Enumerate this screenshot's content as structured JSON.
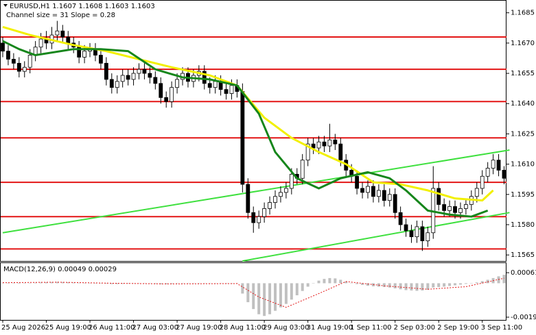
{
  "chart_data": {
    "type": "candlestick",
    "title": "EURUSD,H1  1.1607 1.1608 1.1603 1.1603",
    "subtitle": "Channel size = 31 Slope = 0.28",
    "categories": [
      "25 Aug 2026",
      null,
      null,
      null,
      null,
      null,
      null,
      null,
      "25 Aug 19:00",
      null,
      null,
      null,
      null,
      null,
      null,
      null,
      "26 Aug 11:00",
      null,
      null,
      null,
      null,
      null,
      null,
      null,
      "27 Aug 03:00",
      null,
      null,
      null,
      null,
      null,
      null,
      null,
      "27 Aug 19:00",
      null,
      null,
      null,
      null,
      null,
      null,
      null,
      "28 Aug 11:00",
      null,
      null,
      null,
      null,
      null,
      null,
      null,
      "29 Aug 03:00",
      null,
      null,
      null,
      null,
      null,
      null,
      null,
      "31 Aug 19:00",
      null,
      null,
      null,
      null,
      null,
      null,
      null,
      "1 Sep 11:00",
      null,
      null,
      null,
      null,
      null,
      null,
      null,
      "2 Sep 03:00",
      null,
      null,
      null,
      null,
      null,
      null,
      null,
      "2 Sep 19:00",
      null,
      null,
      null,
      null,
      null,
      null,
      null,
      "3 Sep 11:00",
      null,
      null,
      null,
      null
    ],
    "open": [
      1.167,
      1.1666,
      1.1662,
      1.166,
      1.1656,
      1.1658,
      1.1664,
      1.1668,
      1.1672,
      1.167,
      1.1674,
      1.1676,
      1.1673,
      1.167,
      1.1668,
      1.1663,
      1.1666,
      1.1667,
      1.1664,
      1.166,
      1.1652,
      1.1648,
      1.1651,
      1.1654,
      1.1652,
      1.1655,
      1.1657,
      1.1655,
      1.1653,
      1.165,
      1.1643,
      1.1641,
      1.1648,
      1.1652,
      1.1655,
      1.1651,
      1.1654,
      1.1656,
      1.165,
      1.1648,
      1.1651,
      1.1647,
      1.1645,
      1.1649,
      1.1646,
      1.16,
      1.1586,
      1.1581,
      1.1584,
      1.1588,
      1.1591,
      1.1594,
      1.1596,
      1.1598,
      1.1605,
      1.1603,
      1.1612,
      1.162,
      1.1618,
      1.1621,
      1.1619,
      1.1622,
      1.162,
      1.1612,
      1.1607,
      1.1604,
      1.1598,
      1.1596,
      1.1599,
      1.1594,
      1.1597,
      1.1592,
      1.1595,
      1.1586,
      1.158,
      1.1577,
      1.1574,
      1.1579,
      1.1572,
      1.1576,
      1.1598,
      1.159,
      1.1587,
      1.1589,
      1.1586,
      1.1588,
      1.159,
      1.1594,
      1.1598,
      1.1604,
      1.1608,
      1.1612,
      1.1607
    ],
    "high": [
      1.1673,
      1.1669,
      1.1665,
      1.1663,
      1.1661,
      1.1667,
      1.1671,
      1.1675,
      1.1676,
      1.1678,
      1.1681,
      1.1679,
      1.1676,
      1.1673,
      1.1671,
      1.1669,
      1.167,
      1.167,
      1.1667,
      1.1663,
      1.1655,
      1.1654,
      1.1657,
      1.1657,
      1.1658,
      1.166,
      1.166,
      1.1658,
      1.1656,
      1.1653,
      1.1646,
      1.1651,
      1.1655,
      1.1658,
      1.1658,
      1.1657,
      1.1659,
      1.1659,
      1.1653,
      1.1654,
      1.1654,
      1.165,
      1.1652,
      1.1652,
      1.165,
      1.1603,
      1.1589,
      1.1587,
      1.1591,
      1.1594,
      1.1597,
      1.1599,
      1.1601,
      1.1608,
      1.1608,
      1.1615,
      1.1623,
      1.1623,
      1.1624,
      1.1624,
      1.163,
      1.1625,
      1.1623,
      1.1615,
      1.161,
      1.1607,
      1.1601,
      1.1602,
      1.1602,
      1.16,
      1.16,
      1.1598,
      1.1598,
      1.1589,
      1.1583,
      1.158,
      1.1582,
      1.1582,
      1.1579,
      1.1609,
      1.1601,
      1.1593,
      1.1592,
      1.1592,
      1.1591,
      1.1593,
      1.1597,
      1.1601,
      1.1607,
      1.1611,
      1.1615,
      1.1615,
      1.1609
    ],
    "low": [
      1.1663,
      1.1659,
      1.1657,
      1.1653,
      1.1653,
      1.1655,
      1.1661,
      1.1665,
      1.1667,
      1.1667,
      1.1671,
      1.167,
      1.1667,
      1.1665,
      1.166,
      1.166,
      1.1663,
      1.1661,
      1.1657,
      1.1649,
      1.1645,
      1.1645,
      1.1648,
      1.1649,
      1.1649,
      1.1652,
      1.1652,
      1.165,
      1.1647,
      1.164,
      1.1638,
      1.1638,
      1.1645,
      1.1649,
      1.1648,
      1.1648,
      1.1651,
      1.1647,
      1.1645,
      1.1645,
      1.1644,
      1.1642,
      1.1642,
      1.1643,
      1.1596,
      1.1583,
      1.1576,
      1.1578,
      1.1581,
      1.1585,
      1.1588,
      1.1591,
      1.1593,
      1.1595,
      1.16,
      1.16,
      1.1609,
      1.1615,
      1.1615,
      1.1616,
      1.1616,
      1.1617,
      1.1609,
      1.1604,
      1.1601,
      1.1595,
      1.1593,
      1.1593,
      1.1591,
      1.1591,
      1.1589,
      1.1589,
      1.1583,
      1.1577,
      1.1574,
      1.1571,
      1.1571,
      1.1567,
      1.1569,
      1.1573,
      1.1587,
      1.1584,
      1.1584,
      1.1583,
      1.1583,
      1.1585,
      1.1587,
      1.1591,
      1.1595,
      1.1601,
      1.1605,
      1.1604,
      1.16
    ],
    "close": [
      1.1666,
      1.1662,
      1.166,
      1.1656,
      1.1658,
      1.1664,
      1.1668,
      1.1672,
      1.167,
      1.1674,
      1.1676,
      1.1673,
      1.167,
      1.1668,
      1.1663,
      1.1666,
      1.1667,
      1.1664,
      1.166,
      1.1652,
      1.1648,
      1.1651,
      1.1654,
      1.1652,
      1.1655,
      1.1657,
      1.1655,
      1.1653,
      1.165,
      1.1643,
      1.1641,
      1.1648,
      1.1652,
      1.1655,
      1.1651,
      1.1654,
      1.1656,
      1.165,
      1.1648,
      1.1651,
      1.1647,
      1.1645,
      1.1649,
      1.1646,
      1.16,
      1.1586,
      1.1581,
      1.1584,
      1.1588,
      1.1591,
      1.1594,
      1.1596,
      1.1598,
      1.1605,
      1.1603,
      1.1612,
      1.162,
      1.1618,
      1.1621,
      1.1619,
      1.1622,
      1.162,
      1.1612,
      1.1607,
      1.1604,
      1.1598,
      1.1596,
      1.1599,
      1.1594,
      1.1597,
      1.1592,
      1.1595,
      1.1586,
      1.158,
      1.1577,
      1.1574,
      1.1579,
      1.1572,
      1.1576,
      1.1598,
      1.159,
      1.1587,
      1.1589,
      1.1586,
      1.1588,
      1.159,
      1.1594,
      1.1598,
      1.1604,
      1.1608,
      1.1612,
      1.1607,
      1.1603
    ],
    "ylim": [
      1.1562,
      1.1691
    ],
    "yticks": [
      1.1685,
      {
        "value": 1.167,
        "label": "1.1670"
      },
      1.1655,
      {
        "value": 1.164,
        "label": "1.1640"
      },
      1.1625,
      {
        "value": 1.161,
        "label": "1.1610"
      },
      1.1595,
      {
        "value": 1.158,
        "label": "1.1580"
      },
      1.1565
    ],
    "levels": [
      1.1673,
      1.1657,
      1.1641,
      1.1623,
      1.1601,
      1.1584,
      1.1568
    ],
    "level_color": "#e31414",
    "moving_averages": [
      {
        "color": "#f2f000",
        "x": [
          0,
          5,
          13,
          19,
          25,
          31,
          38,
          43,
          48,
          53,
          58,
          63,
          68,
          73,
          78,
          83,
          88,
          90
        ],
        "values": [
          1.1678,
          1.1674,
          1.1669,
          1.1666,
          1.1662,
          1.1658,
          1.1654,
          1.1649,
          1.1633,
          1.1623,
          1.1616,
          1.161,
          1.1601,
          1.16,
          1.1597,
          1.1593,
          1.1592,
          1.1597
        ]
      },
      {
        "color": "#16861b",
        "x": [
          0,
          3,
          6,
          13,
          18,
          23,
          28,
          33,
          38,
          43,
          47,
          50,
          54,
          58,
          62,
          67,
          71,
          74,
          78,
          82,
          86,
          89
        ],
        "values": [
          1.1671,
          1.1667,
          1.1664,
          1.1667,
          1.1667,
          1.1666,
          1.1657,
          1.1653,
          1.1652,
          1.1649,
          1.1635,
          1.1616,
          1.1603,
          1.1598,
          1.1603,
          1.1606,
          1.1603,
          1.1597,
          1.1587,
          1.1585,
          1.1584,
          1.1587
        ]
      }
    ],
    "channel": {
      "color": "#3ee03e",
      "lines": [
        {
          "x": [
            0,
            93
          ],
          "values": [
            1.1576,
            1.1617
          ]
        },
        {
          "x": [
            44,
            93
          ],
          "values": [
            1.1562,
            1.1586
          ]
        }
      ]
    },
    "macd": {
      "label": "MACD(12,26,9) 0.00049 0.00029",
      "histogram": [
        2e-05,
        1e-05,
        -1e-05,
        -3e-05,
        -2e-05,
        1e-05,
        3e-05,
        5e-05,
        6e-05,
        7e-05,
        8e-05,
        7e-05,
        6e-05,
        4e-05,
        2e-05,
        1e-05,
        1e-05,
        0,
        -1e-05,
        -3e-05,
        -5e-05,
        -5e-05,
        -4e-05,
        -3e-05,
        -2e-05,
        -1e-05,
        -1e-05,
        -2e-05,
        -4e-05,
        -6e-05,
        -6e-05,
        -4e-05,
        -2e-05,
        -1e-05,
        0,
        0,
        1e-05,
        0,
        -1e-05,
        -2e-05,
        -2e-05,
        -3e-05,
        -3e-05,
        -2e-05,
        -0.0006,
        -0.0011,
        -0.0015,
        -0.0018,
        -0.0019,
        -0.0018,
        -0.0016,
        -0.0014,
        -0.0012,
        -0.00095,
        -0.0007,
        -0.00045,
        -0.0002,
        0,
        0.00015,
        0.00025,
        0.0003,
        0.00028,
        0.0002,
        0.0001,
        2e-05,
        -5e-05,
        -0.0001,
        -0.00015,
        -0.00018,
        -0.0002,
        -0.00022,
        -0.00025,
        -0.0003,
        -0.00035,
        -0.0004,
        -0.00042,
        -0.00044,
        -0.00042,
        -0.00038,
        -0.00025,
        -0.00022,
        -0.0002,
        -0.00016,
        -0.00012,
        -8e-05,
        -4e-05,
        0,
        5e-05,
        0.00012,
        0.0002,
        0.0003,
        0.0004,
        0.00049
      ],
      "hist_color": "#c0c0c0",
      "signal": {
        "color": "#e31414",
        "x": [
          0,
          10,
          20,
          30,
          43,
          47,
          52,
          58,
          63,
          70,
          78,
          85,
          92
        ],
        "values": [
          3e-05,
          6e-05,
          0,
          -4e-05,
          -2e-05,
          -0.0008,
          -0.0014,
          -0.0006,
          0.0001,
          -0.00015,
          -0.00035,
          -0.0002,
          0.00029
        ]
      },
      "ylim": [
        -0.00213,
        0.00117
      ],
      "yticks": [
        0.00061,
        -0.00197
      ]
    }
  }
}
